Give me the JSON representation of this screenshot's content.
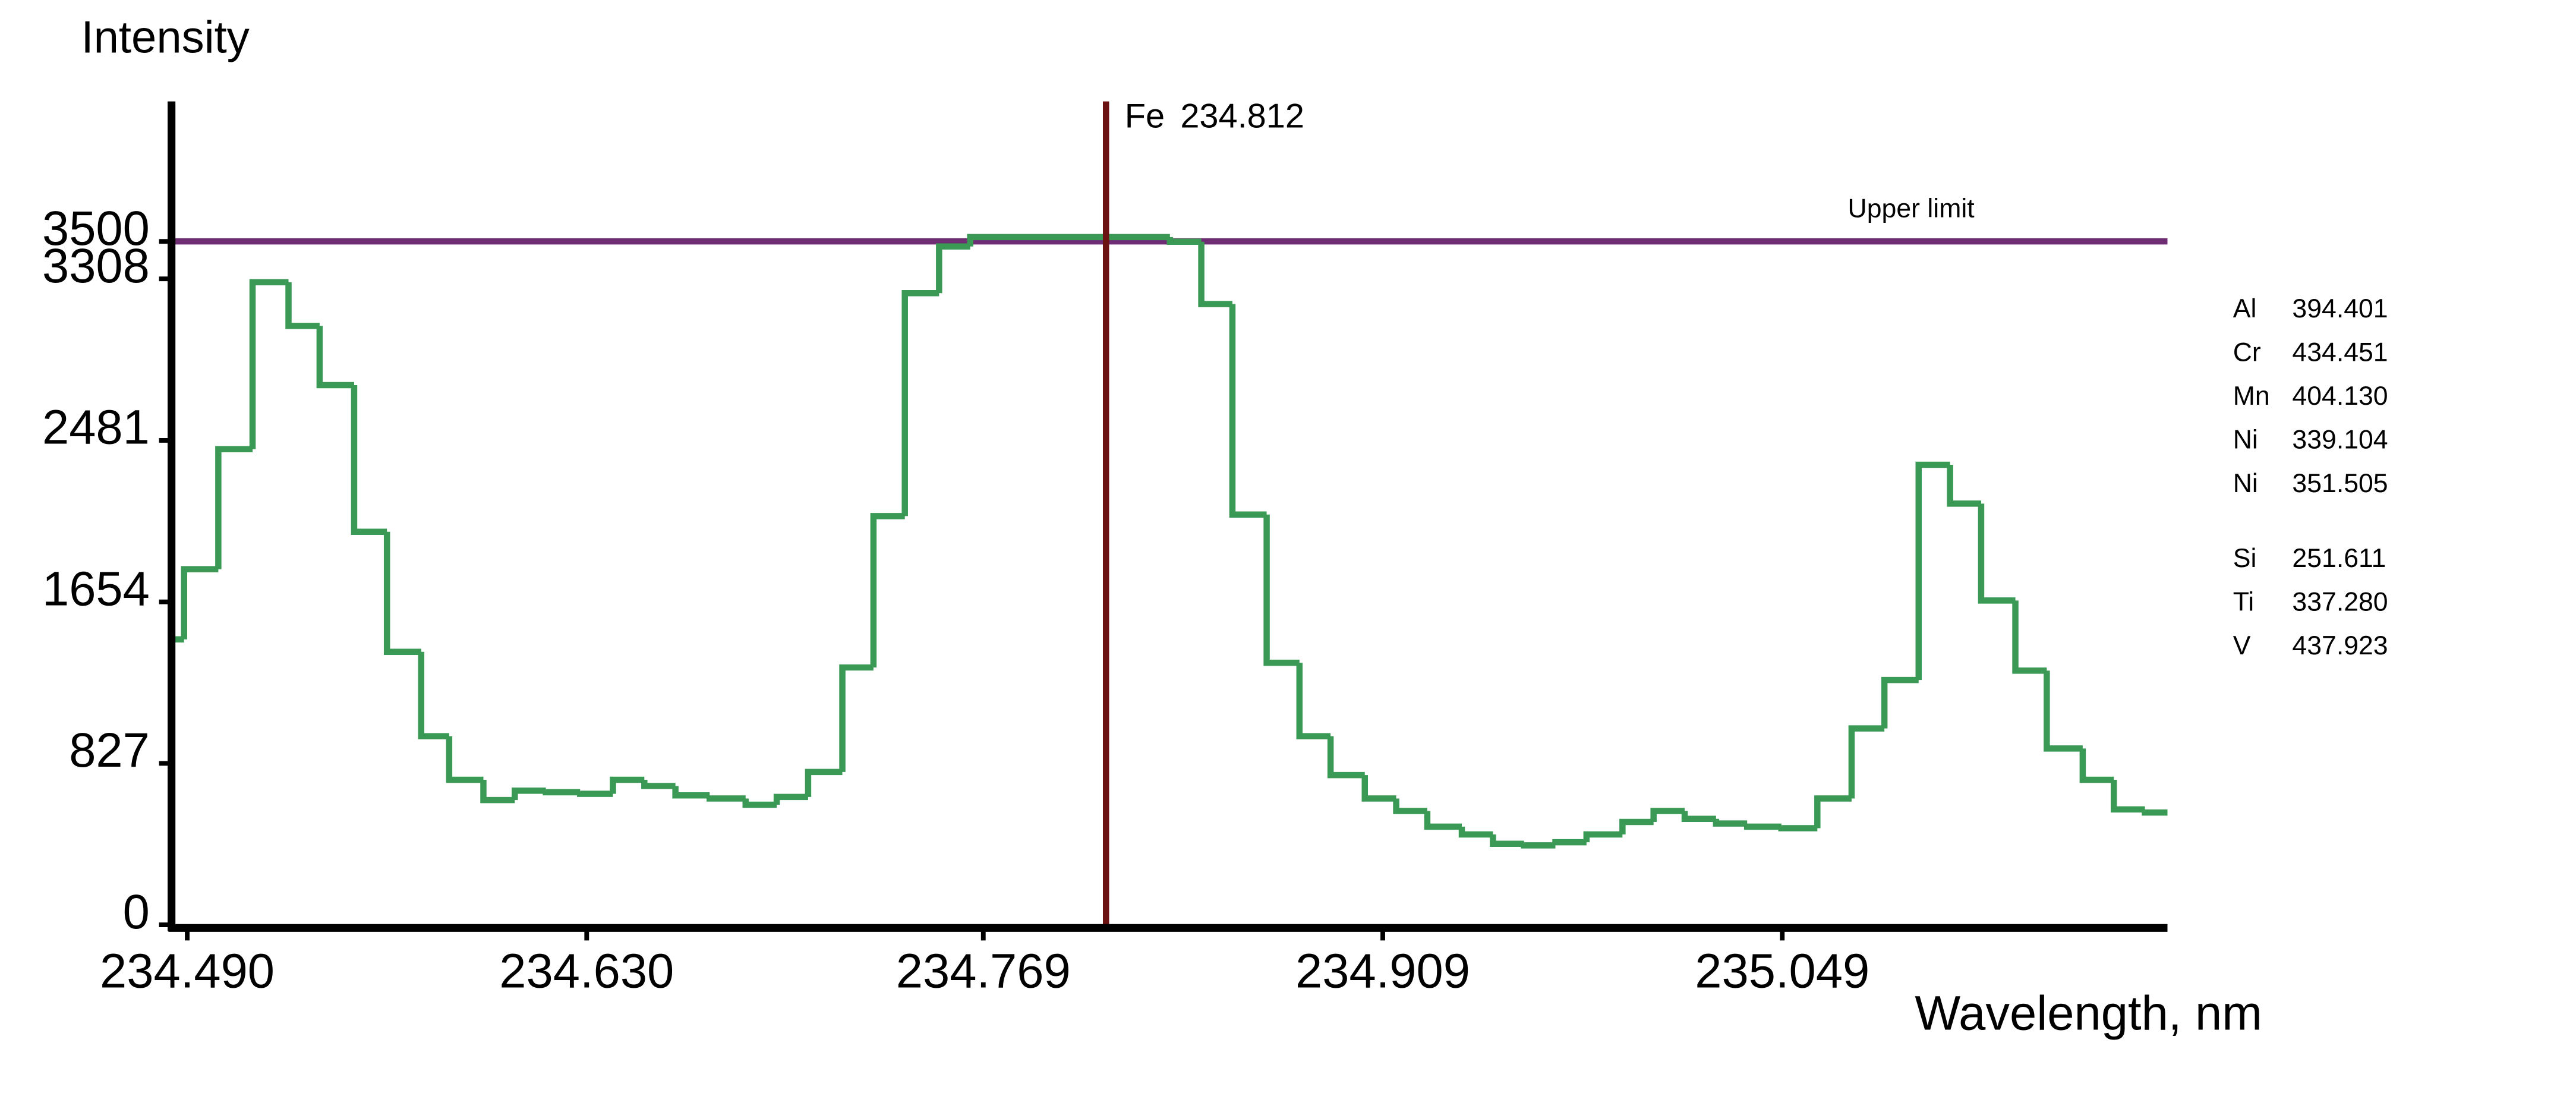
{
  "chart_data": {
    "type": "step",
    "y_label": "Intensity",
    "x_label": "Wavelength, nm",
    "color": "#3a9a55",
    "xlim": [
      234.4845,
      235.184
    ],
    "ylim": [
      0,
      4217
    ],
    "xticks": [
      {
        "value": 234.49,
        "label": "234.490"
      },
      {
        "value": 234.63,
        "label": "234.630"
      },
      234.769,
      234.909,
      235.049
    ],
    "yticks": [
      0,
      827,
      1654,
      2481,
      3308,
      3500
    ],
    "x": [
      234.4845,
      234.4889,
      234.5009,
      234.5129,
      234.5255,
      234.5364,
      234.5485,
      234.56,
      234.572,
      234.5818,
      234.5938,
      234.6048,
      234.6157,
      234.6277,
      234.6392,
      234.6502,
      234.6611,
      234.6731,
      234.6857,
      234.6966,
      234.7076,
      234.7196,
      234.7305,
      234.7415,
      234.7535,
      234.7644,
      234.7754,
      234.8344,
      234.8454,
      234.8563,
      234.8683,
      234.8798,
      234.8907,
      234.9027,
      234.9137,
      234.9246,
      234.9367,
      234.9476,
      234.9585,
      234.9695,
      234.9804,
      234.993,
      235.0039,
      235.0148,
      235.0258,
      235.0367,
      235.0487,
      235.0613,
      235.0733,
      235.0848,
      235.0968,
      235.1078,
      235.1187,
      235.1307,
      235.1417,
      235.1543,
      235.1652,
      235.1761
    ],
    "values": [
      1462,
      1821,
      2436,
      3291,
      3067,
      2764,
      2013,
      1398,
      966,
      743,
      639,
      687,
      679,
      671,
      743,
      711,
      663,
      647,
      615,
      655,
      783,
      1318,
      2093,
      3235,
      3474,
      3522,
      3522,
      3498,
      3179,
      2101,
      1342,
      966,
      767,
      647,
      583,
      503,
      463,
      415,
      407,
      423,
      463,
      527,
      583,
      543,
      519,
      503,
      495,
      647,
      1006,
      1254,
      2356,
      2157,
      1661,
      1302,
      903,
      743,
      591,
      575
    ],
    "vline": {
      "label": "Fe",
      "x": 234.812,
      "color": "#6b1212"
    },
    "hline": {
      "label": "Upper limit",
      "y": 3500,
      "color": "#6e2d72"
    },
    "side_groups": [
      [
        {
          "element": "Al",
          "wavelength": "394.401"
        },
        {
          "element": "Cr",
          "wavelength": "434.451"
        },
        {
          "element": "Mn",
          "wavelength": "404.130"
        },
        {
          "element": "Ni",
          "wavelength": "339.104"
        },
        {
          "element": "Ni",
          "wavelength": "351.505"
        }
      ],
      [
        {
          "element": "Si",
          "wavelength": "251.611"
        },
        {
          "element": "Ti",
          "wavelength": "337.280"
        },
        {
          "element": "V",
          "wavelength": "437.923"
        }
      ]
    ]
  }
}
